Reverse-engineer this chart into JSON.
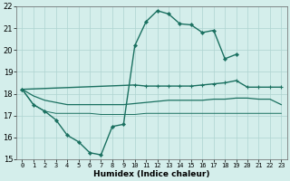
{
  "title": "",
  "xlabel": "Humidex (Indice chaleur)",
  "ylabel": "",
  "xlim": [
    -0.5,
    23.5
  ],
  "ylim": [
    15,
    22
  ],
  "xticks": [
    0,
    1,
    2,
    3,
    4,
    5,
    6,
    7,
    8,
    9,
    10,
    11,
    12,
    13,
    14,
    15,
    16,
    17,
    18,
    19,
    20,
    21,
    22,
    23
  ],
  "yticks": [
    15,
    16,
    17,
    18,
    19,
    20,
    21,
    22
  ],
  "bg_color": "#d4eeeb",
  "grid_color": "#aed4d0",
  "line_color": "#1a7060",
  "series": [
    {
      "x": [
        0,
        1,
        2,
        3,
        4,
        5,
        6,
        7,
        8,
        9,
        10,
        11,
        12,
        13,
        14,
        15,
        16,
        17,
        18,
        19
      ],
      "y": [
        18.2,
        17.5,
        17.2,
        16.8,
        16.1,
        15.8,
        15.3,
        15.2,
        16.5,
        16.6,
        20.2,
        21.3,
        21.8,
        21.65,
        21.2,
        21.15,
        20.8,
        20.9,
        19.6,
        19.8
      ],
      "marker": "D",
      "lw": 1.0
    },
    {
      "x": [
        0,
        10,
        11,
        12,
        13,
        14,
        15,
        16,
        17,
        18,
        19,
        20,
        21,
        22,
        23
      ],
      "y": [
        18.2,
        18.4,
        18.35,
        18.35,
        18.35,
        18.35,
        18.35,
        18.4,
        18.45,
        18.5,
        18.6,
        18.3,
        18.3,
        18.3,
        18.3
      ],
      "marker": "+",
      "lw": 1.0
    },
    {
      "x": [
        0,
        1,
        2,
        3,
        4,
        5,
        6,
        7,
        8,
        9,
        10,
        11,
        12,
        13,
        14,
        15,
        16,
        17,
        18,
        19,
        20,
        21,
        22,
        23
      ],
      "y": [
        18.2,
        17.9,
        17.7,
        17.6,
        17.5,
        17.5,
        17.5,
        17.5,
        17.5,
        17.5,
        17.55,
        17.6,
        17.65,
        17.7,
        17.7,
        17.7,
        17.7,
        17.75,
        17.75,
        17.8,
        17.8,
        17.75,
        17.75,
        17.5
      ],
      "marker": null,
      "lw": 0.9
    },
    {
      "x": [
        0,
        1,
        2,
        3,
        4,
        5,
        6,
        7,
        8,
        9,
        10,
        11,
        12,
        13,
        14,
        15,
        16,
        17,
        18,
        19,
        20,
        21,
        22,
        23
      ],
      "y": [
        18.2,
        17.5,
        17.2,
        17.1,
        17.1,
        17.1,
        17.1,
        17.05,
        17.05,
        17.05,
        17.05,
        17.1,
        17.1,
        17.1,
        17.1,
        17.1,
        17.1,
        17.1,
        17.1,
        17.1,
        17.1,
        17.1,
        17.1,
        17.1
      ],
      "marker": null,
      "lw": 0.7
    }
  ]
}
